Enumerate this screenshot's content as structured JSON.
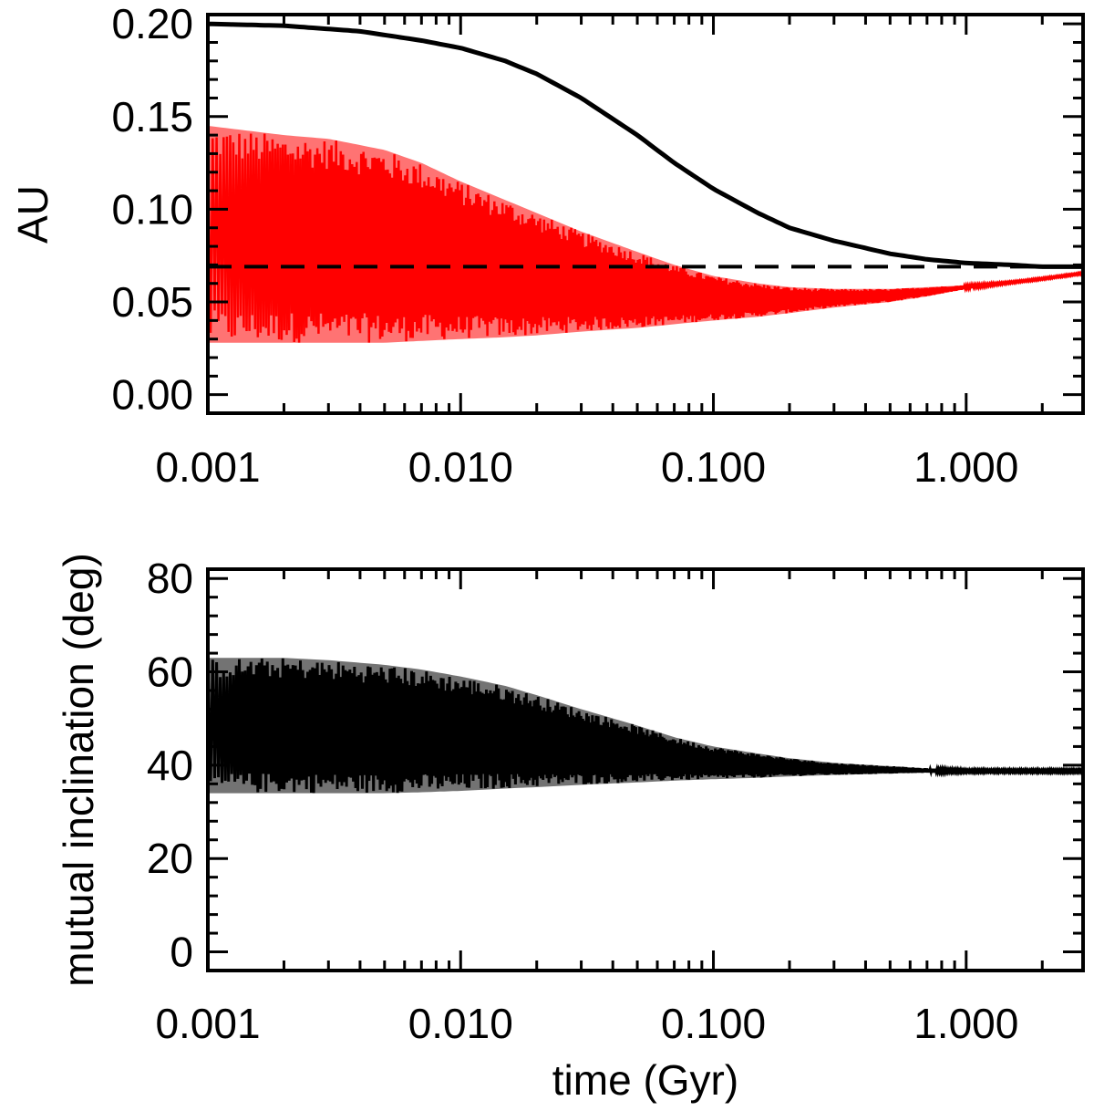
{
  "chart_data": [
    {
      "type": "line",
      "ylabel": "AU",
      "xlabel": "",
      "xscale": "log",
      "xlim": [
        0.001,
        2.9
      ],
      "ylim": [
        -0.01,
        0.205
      ],
      "xtick_values": [
        0.001,
        0.01,
        0.1,
        1.0
      ],
      "xtick_labels": [
        "0.001",
        "0.010",
        "0.100",
        "1.000"
      ],
      "ytick_values": [
        0.0,
        0.05,
        0.1,
        0.15,
        0.2
      ],
      "ytick_labels": [
        "0.00",
        "0.05",
        "0.10",
        "0.15",
        "0.20"
      ],
      "colors": {
        "solid": "#000000",
        "band": "#ff0000",
        "dashed": "#000000"
      },
      "series": [
        {
          "style": "solid",
          "x": [
            0.001,
            0.002,
            0.004,
            0.007,
            0.01,
            0.015,
            0.02,
            0.03,
            0.05,
            0.07,
            0.1,
            0.15,
            0.2,
            0.3,
            0.5,
            0.7,
            1.0,
            1.5,
            2.0,
            2.9
          ],
          "y": [
            0.2,
            0.199,
            0.196,
            0.191,
            0.187,
            0.18,
            0.173,
            0.16,
            0.14,
            0.125,
            0.111,
            0.098,
            0.09,
            0.083,
            0.076,
            0.073,
            0.071,
            0.07,
            0.069,
            0.069
          ]
        },
        {
          "style": "dashed",
          "x": [
            0.001,
            2.9
          ],
          "y": [
            0.069,
            0.069
          ]
        },
        {
          "style": "band",
          "x": [
            0.001,
            0.002,
            0.003,
            0.005,
            0.007,
            0.01,
            0.015,
            0.02,
            0.03,
            0.05,
            0.07,
            0.1,
            0.15,
            0.2,
            0.3,
            0.5,
            0.7,
            1.0,
            1.5,
            2.0,
            2.9
          ],
          "y_upper": [
            0.145,
            0.14,
            0.138,
            0.132,
            0.125,
            0.115,
            0.105,
            0.098,
            0.088,
            0.077,
            0.07,
            0.064,
            0.06,
            0.058,
            0.057,
            0.057,
            0.058,
            0.059,
            0.061,
            0.063,
            0.066
          ],
          "y_lower": [
            0.028,
            0.028,
            0.028,
            0.028,
            0.029,
            0.03,
            0.031,
            0.032,
            0.034,
            0.036,
            0.038,
            0.04,
            0.042,
            0.044,
            0.047,
            0.05,
            0.053,
            0.057,
            0.06,
            0.062,
            0.065
          ]
        }
      ]
    },
    {
      "type": "line",
      "ylabel": "mutual inclination (deg)",
      "xlabel": "time (Gyr)",
      "xscale": "log",
      "xlim": [
        0.001,
        2.9
      ],
      "ylim": [
        -4,
        82
      ],
      "xtick_values": [
        0.001,
        0.01,
        0.1,
        1.0
      ],
      "xtick_labels": [
        "0.001",
        "0.010",
        "0.100",
        "1.000"
      ],
      "ytick_values": [
        0,
        20,
        40,
        60,
        80
      ],
      "ytick_labels": [
        "0",
        "20",
        "40",
        "60",
        "80"
      ],
      "colors": {
        "band": "#000000"
      },
      "series": [
        {
          "style": "band",
          "x": [
            0.001,
            0.002,
            0.003,
            0.005,
            0.007,
            0.01,
            0.015,
            0.02,
            0.03,
            0.05,
            0.07,
            0.1,
            0.15,
            0.2,
            0.3,
            0.5,
            0.7,
            1.0,
            1.5,
            2.0,
            2.9
          ],
          "y_upper": [
            63,
            63,
            62.5,
            61.5,
            60.5,
            59,
            57,
            55,
            52,
            48.5,
            46,
            44,
            42.5,
            41.5,
            40.5,
            39.8,
            39.3,
            39,
            39,
            39,
            39
          ],
          "y_lower": [
            34,
            34,
            34,
            34,
            34.2,
            34.5,
            35,
            35.3,
            35.8,
            36.3,
            36.7,
            37,
            37.3,
            37.6,
            37.9,
            38.2,
            38.4,
            38.5,
            38.5,
            38.5,
            38.5
          ]
        }
      ]
    }
  ]
}
